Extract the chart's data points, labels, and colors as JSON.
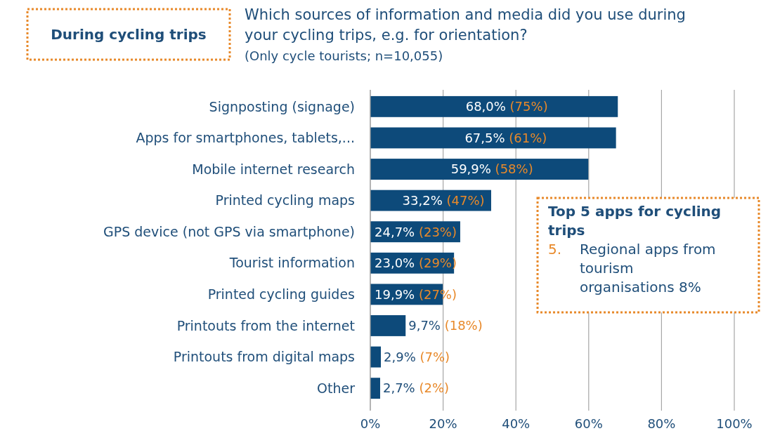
{
  "chart_data": {
    "type": "bar",
    "orientation": "horizontal",
    "title": "Which sources of information and media did you use during your cycling trips, e.g. for orientation?",
    "subtitle": "(Only cycle tourists; n=10,055)",
    "categories": [
      "Signposting (signage)",
      "Apps for smartphones, tablets,...",
      "Mobile internet research",
      "Printed cycling maps",
      "GPS device (not GPS via smartphone)",
      "Tourist information",
      "Printed cycling guides",
      "Printouts from the internet",
      "Printouts from digital maps",
      "Other"
    ],
    "values": [
      68.0,
      67.5,
      59.9,
      33.2,
      24.7,
      23.0,
      19.9,
      9.7,
      2.9,
      2.7
    ],
    "value_labels": [
      "68,0% (75%)",
      "67,5% (61%)",
      "59,9% (58%)",
      "33,2% (47%)",
      "24,7% (23%)",
      "23,0% (29%)",
      "19,9% (27%)",
      "9,7% (18%)",
      "2,9% (7%)",
      "2,7% (2%)"
    ],
    "color": "#0d4a7a",
    "xlim": [
      0,
      100
    ],
    "xticks": [
      {
        "value": 0,
        "label": "0%"
      },
      {
        "value": 20,
        "label": "20%"
      },
      {
        "value": 40,
        "label": "40%"
      },
      {
        "value": 60,
        "label": "60%"
      },
      {
        "value": 80,
        "label": "80%"
      },
      {
        "value": 100,
        "label": "100%"
      }
    ],
    "grid": "x",
    "annotations": [
      "During cycling trips",
      "Top 5 apps for cycling trips",
      "5. Regional apps from tourism organisations 8%"
    ]
  }
}
